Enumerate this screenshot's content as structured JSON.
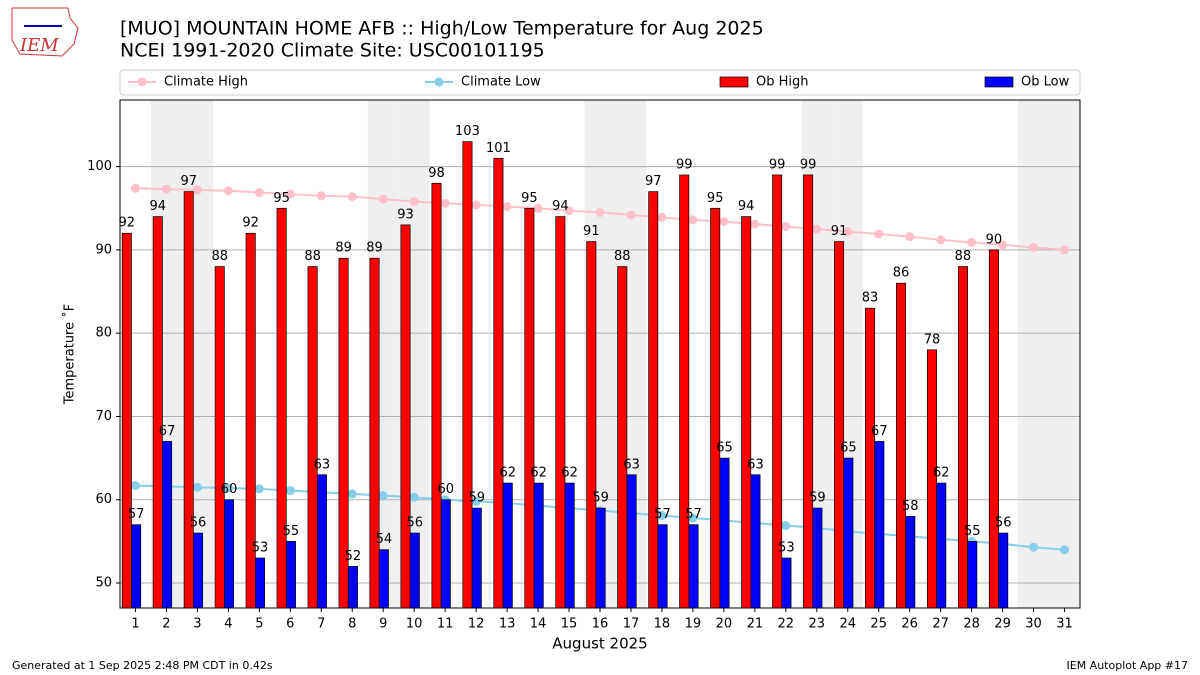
{
  "logo_text": "IEM",
  "chart_data": {
    "type": "bar",
    "title": "[MUO] MOUNTAIN HOME AFB :: High/Low Temperature for Aug 2025",
    "subtitle": "NCEI 1991-2020 Climate Site: USC00101195",
    "x_label": "August 2025",
    "y_label": "Temperature ˚F",
    "footer_left": "Generated at 1 Sep 2025 2:48 PM CDT in 0.42s",
    "footer_right": "IEM Autoplot App #17",
    "categories": [
      "1",
      "2",
      "3",
      "4",
      "5",
      "6",
      "7",
      "8",
      "9",
      "10",
      "11",
      "12",
      "13",
      "14",
      "15",
      "16",
      "17",
      "18",
      "19",
      "20",
      "21",
      "22",
      "23",
      "24",
      "25",
      "26",
      "27",
      "28",
      "29",
      "30",
      "31"
    ],
    "series": [
      {
        "name": "Climate High",
        "type": "line",
        "color": "#ffc0cb",
        "values": [
          97.4,
          97.3,
          97.2,
          97.1,
          96.9,
          96.7,
          96.5,
          96.4,
          96.1,
          95.8,
          95.6,
          95.4,
          95.2,
          95.0,
          94.7,
          94.5,
          94.2,
          93.9,
          93.6,
          93.4,
          93.1,
          92.8,
          92.5,
          92.2,
          91.9,
          91.6,
          91.2,
          90.9,
          90.6,
          90.3,
          90.0
        ]
      },
      {
        "name": "Climate Low",
        "type": "line",
        "color": "#87ceeb",
        "values": [
          61.7,
          61.6,
          61.5,
          61.4,
          61.3,
          61.1,
          60.9,
          60.7,
          60.5,
          60.3,
          60.0,
          59.8,
          59.6,
          59.3,
          59.0,
          58.7,
          58.4,
          58.1,
          57.8,
          57.5,
          57.2,
          56.9,
          56.6,
          56.2,
          55.9,
          55.6,
          55.3,
          55.0,
          54.7,
          54.3,
          54.0
        ]
      },
      {
        "name": "Ob High",
        "type": "bar",
        "color": "#ff0000",
        "values": [
          92,
          94,
          97,
          88,
          92,
          95,
          88,
          89,
          89,
          93,
          98,
          103,
          101,
          95,
          94,
          91,
          88,
          97,
          99,
          95,
          94,
          99,
          99,
          91,
          83,
          86,
          78,
          88,
          90,
          null,
          null
        ]
      },
      {
        "name": "Ob Low",
        "type": "bar",
        "color": "#0000ff",
        "values": [
          57,
          67,
          56,
          60,
          53,
          55,
          63,
          52,
          54,
          56,
          60,
          59,
          62,
          62,
          62,
          59,
          63,
          57,
          57,
          65,
          63,
          53,
          59,
          65,
          67,
          58,
          62,
          55,
          56,
          null,
          null
        ]
      }
    ],
    "shaded_days": [
      2,
      3,
      9,
      10,
      16,
      17,
      23,
      24,
      30,
      31
    ],
    "ylim": [
      47,
      108
    ],
    "yticks": [
      50,
      60,
      70,
      80,
      90,
      100
    ],
    "grid": true
  }
}
